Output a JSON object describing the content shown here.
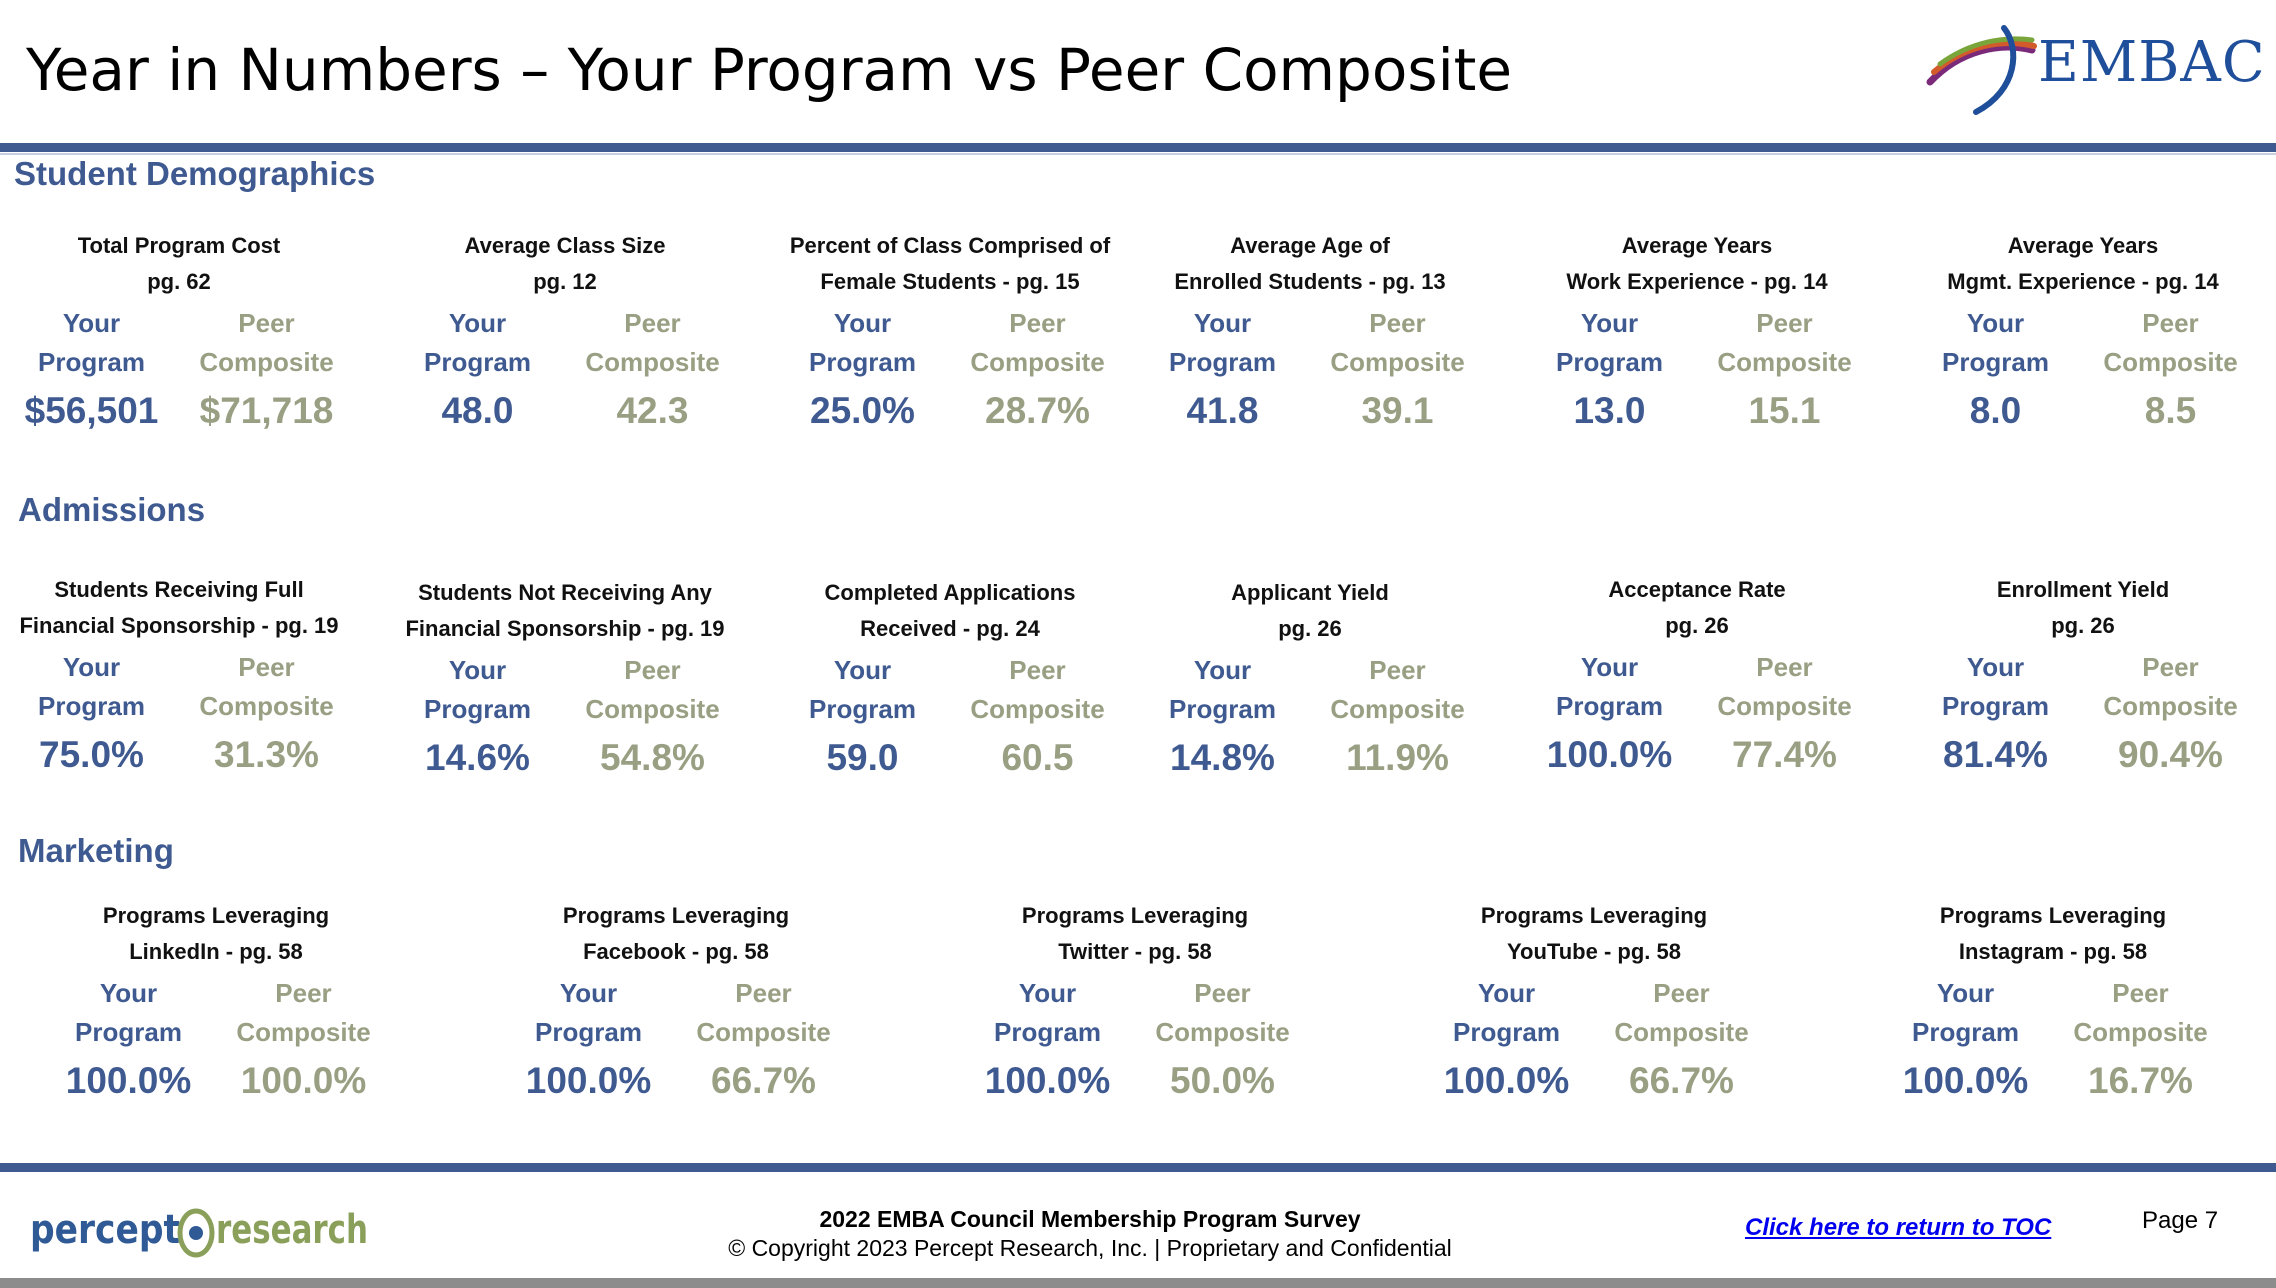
{
  "header": {
    "title": "Year in Numbers – Your Program vs Peer Composite",
    "logo_text": "EMBAC"
  },
  "column_headers": {
    "yours_line1": "Your",
    "yours_line2": "Program",
    "peer_line1": "Peer",
    "peer_line2": "Composite"
  },
  "sections": [
    {
      "title": "Student Demographics",
      "metrics": [
        {
          "line1": "Total Program Cost",
          "line2": "pg. 62",
          "yours": "$56,501",
          "peer": "$71,718"
        },
        {
          "line1": "Average Class Size",
          "line2": "pg. 12",
          "yours": "48.0",
          "peer": "42.3"
        },
        {
          "line1": "Percent of Class Comprised of",
          "line2": "Female Students - pg. 15",
          "yours": "25.0%",
          "peer": "28.7%"
        },
        {
          "line1": "Average Age of",
          "line2": "Enrolled Students - pg. 13",
          "yours": "41.8",
          "peer": "39.1"
        },
        {
          "line1": "Average Years",
          "line2": "Work Experience - pg. 14",
          "yours": "13.0",
          "peer": "15.1"
        },
        {
          "line1": "Average Years",
          "line2": "Mgmt. Experience - pg. 14",
          "yours": "8.0",
          "peer": "8.5"
        }
      ]
    },
    {
      "title": "Admissions",
      "metrics": [
        {
          "line1": "Students Receiving Full",
          "line2": "Financial Sponsorship - pg. 19",
          "yours": "75.0%",
          "peer": "31.3%"
        },
        {
          "line1": "Students Not Receiving Any",
          "line2": "Financial Sponsorship - pg. 19",
          "yours": "14.6%",
          "peer": "54.8%"
        },
        {
          "line1": "Completed Applications",
          "line2": "Received - pg. 24",
          "yours": "59.0",
          "peer": "60.5"
        },
        {
          "line1": "Applicant Yield",
          "line2": "pg. 26",
          "yours": "14.8%",
          "peer": "11.9%"
        },
        {
          "line1": "Acceptance Rate",
          "line2": "pg. 26",
          "yours": "100.0%",
          "peer": "77.4%"
        },
        {
          "line1": "Enrollment Yield",
          "line2": "pg. 26",
          "yours": "81.4%",
          "peer": "90.4%"
        }
      ]
    },
    {
      "title": "Marketing",
      "metrics": [
        {
          "line1": "Programs Leveraging",
          "line2": "LinkedIn - pg. 58",
          "yours": "100.0%",
          "peer": "100.0%"
        },
        {
          "line1": "Programs Leveraging",
          "line2": "Facebook - pg. 58",
          "yours": "100.0%",
          "peer": "66.7%"
        },
        {
          "line1": "Programs Leveraging",
          "line2": "Twitter - pg. 58",
          "yours": "100.0%",
          "peer": "50.0%"
        },
        {
          "line1": "Programs Leveraging",
          "line2": "YouTube - pg. 58",
          "yours": "100.0%",
          "peer": "66.7%"
        },
        {
          "line1": "Programs Leveraging",
          "line2": "Instagram - pg. 58",
          "yours": "100.0%",
          "peer": "16.7%"
        }
      ]
    }
  ],
  "footer": {
    "logo_text_left": "percept",
    "logo_text_right": "research",
    "survey_title": "2022 EMBA Council Membership Program Survey",
    "copyright": "© Copyright 2023 Percept Research, Inc. | Proprietary and Confidential",
    "toc_link": "Click here to return to TOC",
    "page_label": "Page 7"
  },
  "colors": {
    "your_program": "#3f5a91",
    "peer_composite": "#999f83",
    "bar": "#3f5a91",
    "link": "#0000ee"
  }
}
